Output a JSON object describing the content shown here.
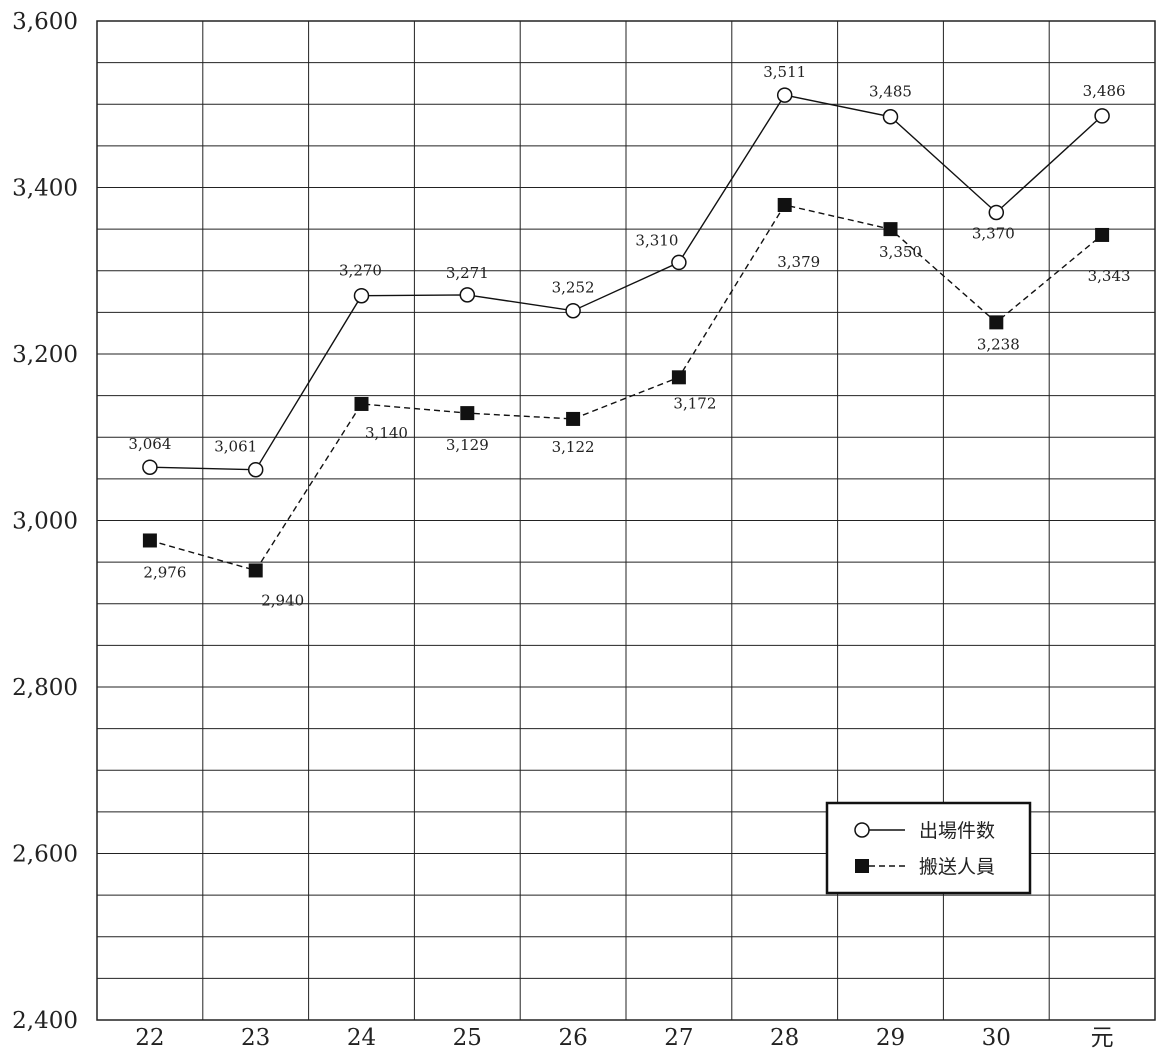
{
  "chart_data": {
    "type": "line",
    "categories": [
      "22",
      "23",
      "24",
      "25",
      "26",
      "27",
      "28",
      "29",
      "30",
      "元"
    ],
    "ylim": [
      2400,
      3600
    ],
    "yticks": [
      2400,
      2600,
      2800,
      3000,
      3200,
      3400,
      3600
    ],
    "ytick_labels": [
      "2,400",
      "2,600",
      "2,800",
      "3,000",
      "3,200",
      "3,400",
      "3,600"
    ],
    "minor_grid_step": 50,
    "grid": true,
    "legend_position": "bottom-right",
    "series": [
      {
        "name": "出場件数",
        "marker": "open-circle",
        "line_style": "solid",
        "values": [
          3064,
          3061,
          3270,
          3271,
          3252,
          3310,
          3511,
          3485,
          3370,
          3486
        ],
        "labels": [
          "3,064",
          "3,061",
          "3,270",
          "3,271",
          "3,252",
          "3,310",
          "3,511",
          "3,485",
          "3,370",
          "3,486"
        ]
      },
      {
        "name": "搬送人員",
        "marker": "filled-square",
        "line_style": "dashed",
        "values": [
          2976,
          2940,
          3140,
          3129,
          3122,
          3172,
          3379,
          3350,
          3238,
          3343
        ],
        "labels": [
          "2,976",
          "2,940",
          "3,140",
          "3,129",
          "3,122",
          "3,172",
          "3,379",
          "3,350",
          "3,238",
          "3,343"
        ]
      }
    ],
    "colors": {
      "line": "#111111",
      "grid": "#222222",
      "background": "#ffffff"
    }
  }
}
